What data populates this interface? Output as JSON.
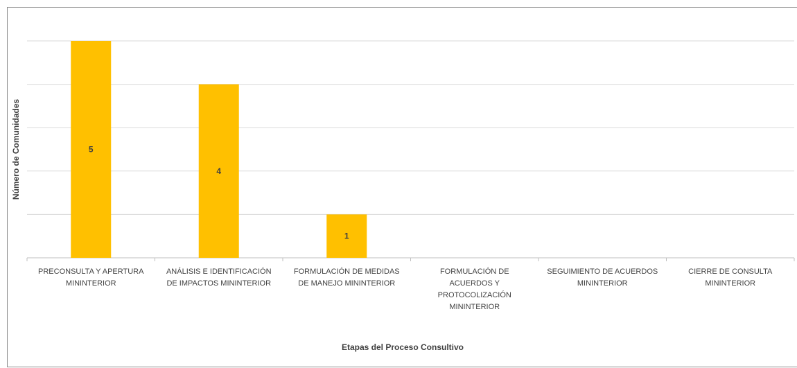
{
  "chart_data": {
    "type": "bar",
    "title": "",
    "xlabel": "Etapas del Proceso Consultivo",
    "ylabel": "Número de Comunidades",
    "categories": [
      [
        "PRECONSULTA Y APERTURA",
        "MININTERIOR"
      ],
      [
        "ANÁLISIS E IDENTIFICACIÓN",
        "DE IMPACTOS  MININTERIOR"
      ],
      [
        "FORMULACIÓN DE MEDIDAS",
        "DE MANEJO MININTERIOR"
      ],
      [
        "FORMULACIÓN DE",
        "ACUERDOS Y",
        "PROTOCOLIZACIÓN",
        "MININTERIOR"
      ],
      [
        "SEGUIMIENTO DE ACUERDOS",
        "MININTERIOR"
      ],
      [
        "CIERRE DE CONSULTA",
        "MININTERIOR"
      ]
    ],
    "values": [
      5,
      4,
      1,
      0,
      0,
      0
    ],
    "ylim": [
      0,
      5
    ],
    "grid": true,
    "bar_color": "#FFC000",
    "data_labels": [
      "5",
      "4",
      "1",
      "",
      "",
      ""
    ]
  }
}
